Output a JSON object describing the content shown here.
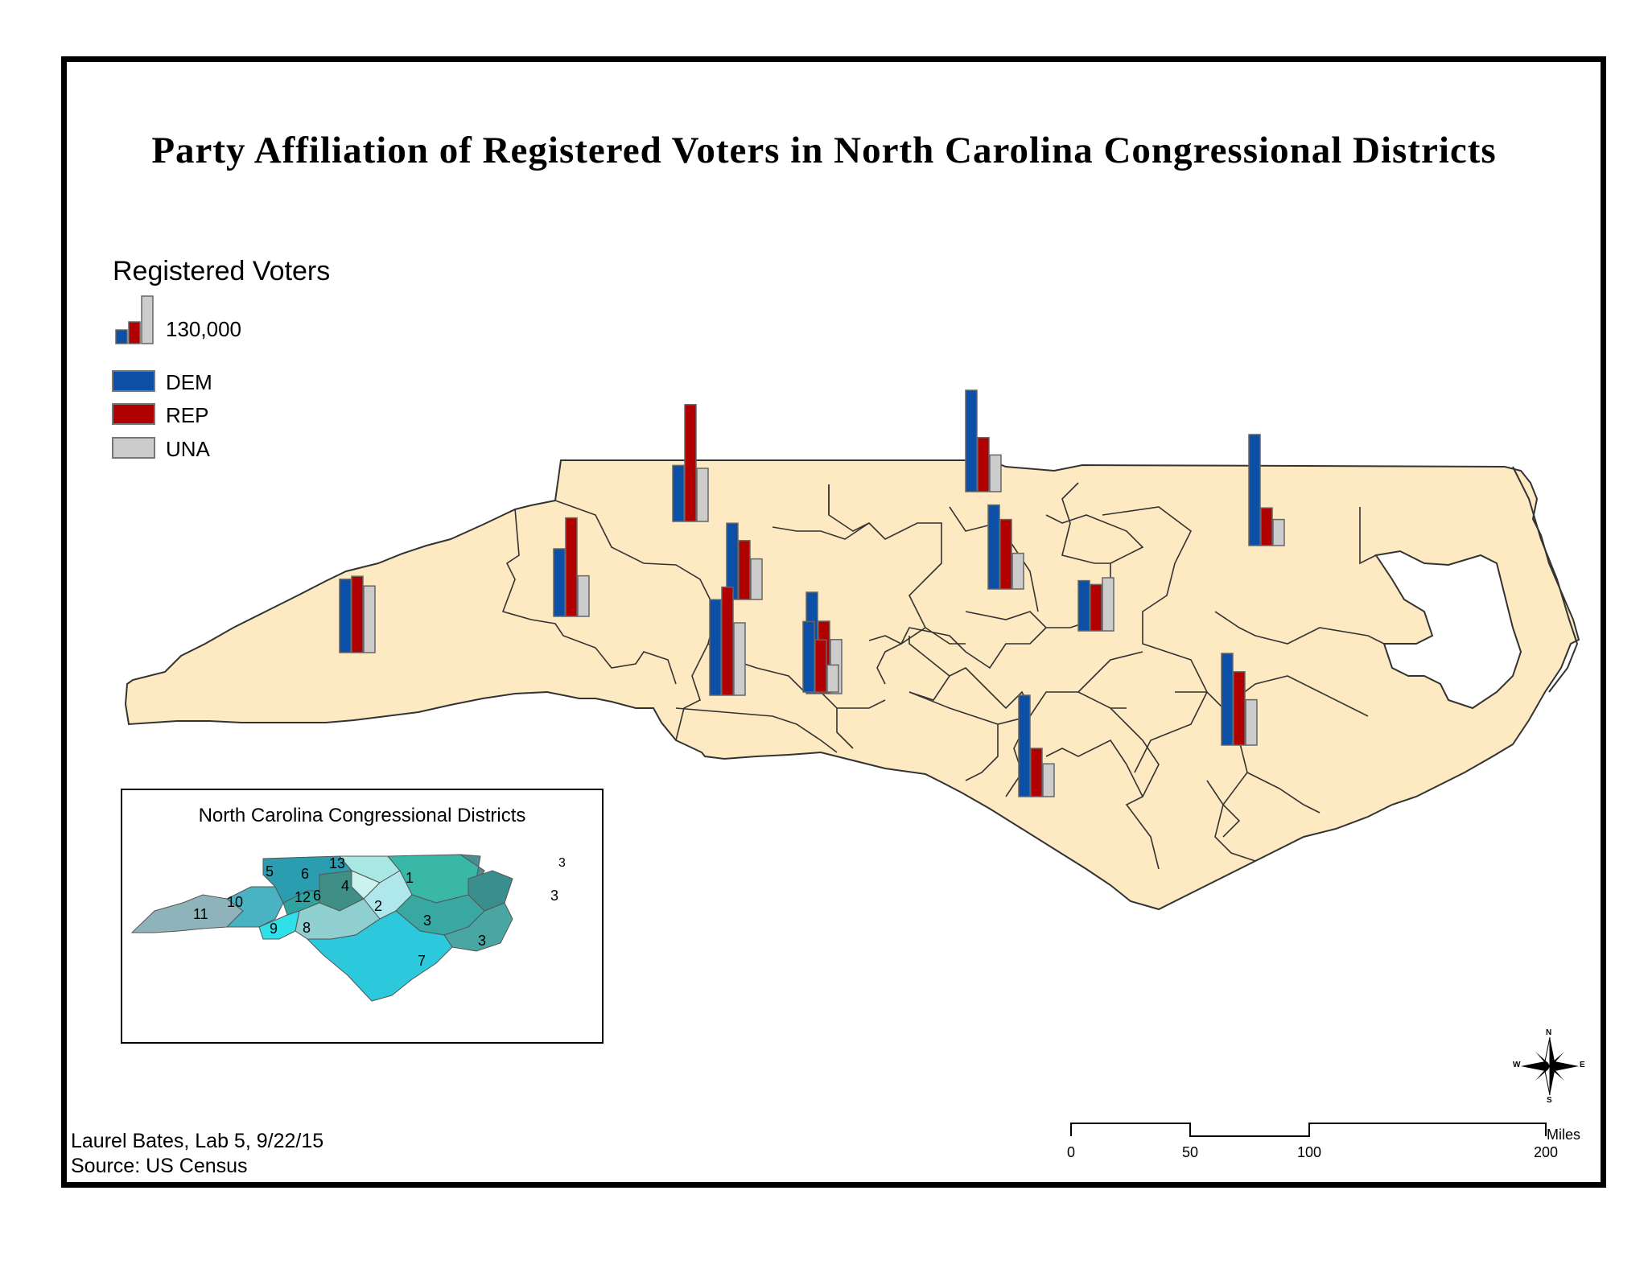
{
  "title": "Party Affiliation of Registered Voters in North Carolina Congressional Districts",
  "legend": {
    "title": "Registered Voters",
    "size_label": "130,000",
    "items": [
      {
        "label": "DEM",
        "color": "#0b4fa6"
      },
      {
        "label": "REP",
        "color": "#b00000"
      },
      {
        "label": "UNA",
        "color": "#cccccc"
      }
    ]
  },
  "map_colors": {
    "land": "#fde9c2",
    "district_border": "#333333"
  },
  "district_charts": [
    {
      "dem": 58,
      "rep": 121,
      "una": 55
    },
    {
      "dem": 79,
      "rep": 61,
      "una": 42
    },
    {
      "dem": 87,
      "rep": 72,
      "una": 37
    },
    {
      "dem": 52,
      "rep": 48,
      "una": 55
    },
    {
      "dem": 76,
      "rep": 79,
      "una": 69
    },
    {
      "dem": 99,
      "rep": 112,
      "una": 75
    },
    {
      "dem": 105,
      "rep": 50,
      "una": 34
    },
    {
      "dem": 105,
      "rep": 75,
      "una": 56
    },
    {
      "dem": 70,
      "rep": 102,
      "una": 42
    },
    {
      "dem": 73,
      "rep": 54,
      "una": 28
    },
    {
      "dem": 115,
      "rep": 39,
      "una": 27
    },
    {
      "dem": 95,
      "rep": 76,
      "una": 47
    },
    {
      "dem": 105,
      "rep": 56,
      "una": 38
    }
  ],
  "inset": {
    "title": "North Carolina Congressional Districts",
    "labels": [
      "5",
      "6",
      "13",
      "4",
      "1",
      "3",
      "3",
      "12",
      "6",
      "2",
      "10",
      "11",
      "9",
      "8",
      "3",
      "3",
      "7"
    ]
  },
  "credit": {
    "line1": "Laurel Bates, Lab 5, 9/22/15",
    "line2": "Source: US Census"
  },
  "scale_bar": {
    "labels": [
      "0",
      "50",
      "100",
      "200"
    ],
    "unit": "Miles"
  },
  "compass": {
    "n": "N",
    "s": "S",
    "e": "E",
    "w": "W"
  }
}
